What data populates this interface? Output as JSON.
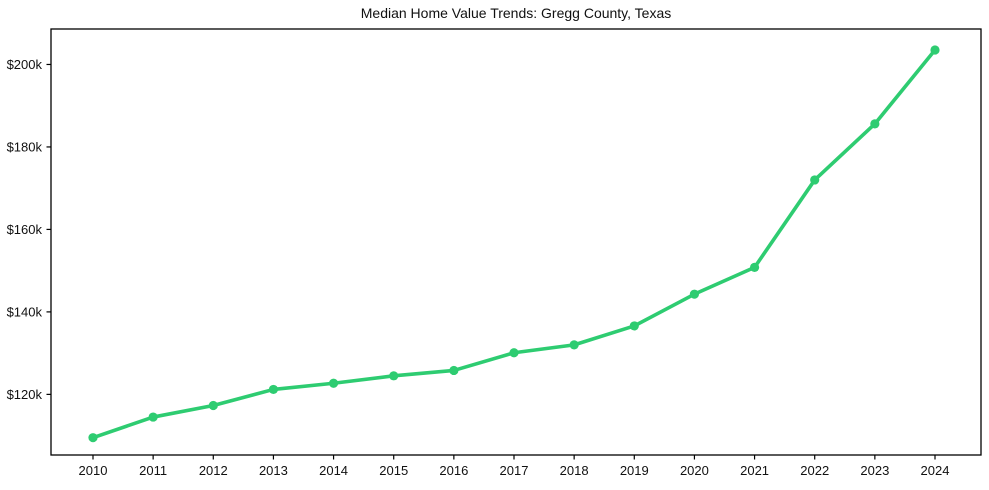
{
  "chart_data": {
    "type": "line",
    "title": "Median Home Value Trends: Gregg County, Texas",
    "xlabel": "",
    "ylabel": "",
    "categories": [
      "2010",
      "2011",
      "2012",
      "2013",
      "2014",
      "2015",
      "2016",
      "2017",
      "2018",
      "2019",
      "2020",
      "2021",
      "2022",
      "2023",
      "2024"
    ],
    "values": [
      109500,
      114500,
      117300,
      121200,
      122700,
      124500,
      125800,
      130100,
      132000,
      136600,
      144300,
      150800,
      172000,
      185600,
      203500
    ],
    "y_ticks": {
      "values": [
        120000,
        140000,
        160000,
        180000,
        200000
      ],
      "labels": [
        "$120k",
        "$140k",
        "$160k",
        "$180k",
        "$200k"
      ]
    },
    "ylim": [
      105300,
      208600
    ],
    "grid": false,
    "legend": "none",
    "style": {
      "line_color": "#2ecc71",
      "marker_color": "#2ecc71",
      "marker": "circle",
      "axis_color": "#000000",
      "text_color": "#111111",
      "background": "#ffffff"
    }
  }
}
